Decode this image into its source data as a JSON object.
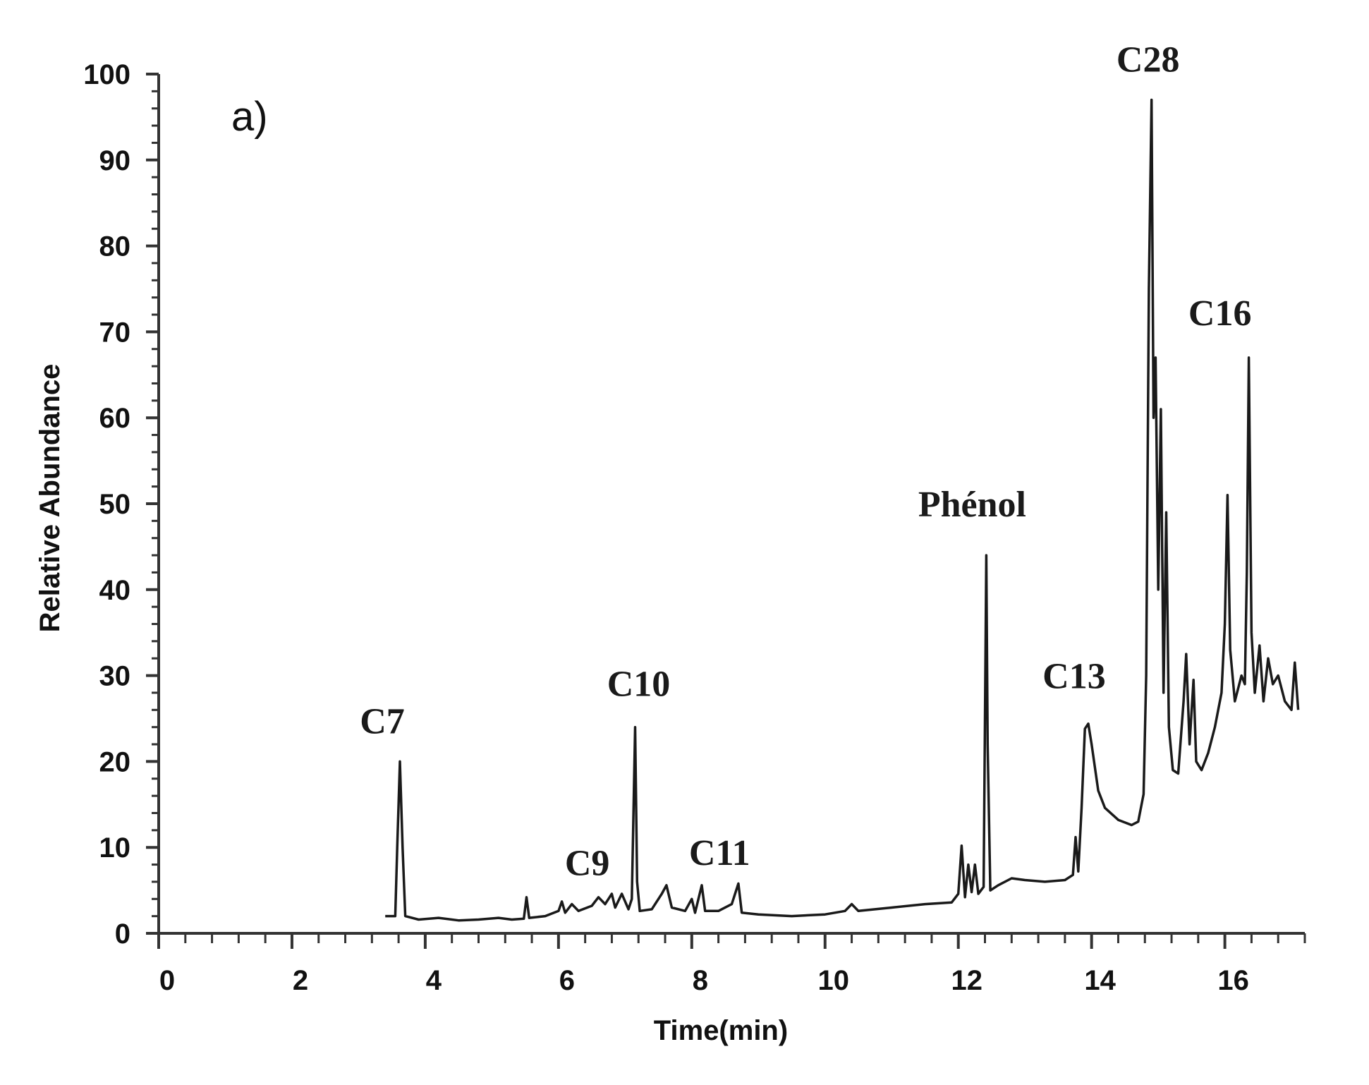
{
  "chart_data": {
    "type": "line",
    "panel_label": "a)",
    "title": "",
    "xlabel": "Time(min)",
    "ylabel": "Relative Abundance",
    "xlim": [
      0,
      17.2
    ],
    "ylim": [
      0,
      100
    ],
    "x_ticks": [
      0,
      2,
      4,
      6,
      8,
      10,
      12,
      14,
      16
    ],
    "y_ticks": [
      0,
      10,
      20,
      30,
      40,
      50,
      60,
      70,
      80,
      90,
      100
    ],
    "grid": false,
    "legend": "none",
    "colors": {
      "trace": "#1a1a1a",
      "axis": "#333333"
    },
    "peak_annotations": [
      {
        "label": "C7",
        "x": 3.62,
        "y": 20
      },
      {
        "label": "C9",
        "x": 5.5,
        "y": 4
      },
      {
        "label": "C10",
        "x": 7.15,
        "y": 24
      },
      {
        "label": "C11",
        "x": 8.1,
        "y": 5
      },
      {
        "label": "Phénol",
        "x": 12.42,
        "y": 44
      },
      {
        "label": "C13",
        "x": 13.95,
        "y": 24
      },
      {
        "label": "C28",
        "x": 14.9,
        "y": 97
      },
      {
        "label": "C16",
        "x": 16.35,
        "y": 67
      }
    ],
    "series": [
      {
        "points": [
          [
            3.4,
            2.0
          ],
          [
            3.55,
            2.0
          ],
          [
            3.58,
            10
          ],
          [
            3.62,
            20
          ],
          [
            3.66,
            10
          ],
          [
            3.7,
            2.0
          ],
          [
            3.9,
            1.6
          ],
          [
            4.2,
            1.8
          ],
          [
            4.5,
            1.5
          ],
          [
            4.8,
            1.6
          ],
          [
            5.1,
            1.8
          ],
          [
            5.3,
            1.6
          ],
          [
            5.48,
            1.7
          ],
          [
            5.52,
            4.2
          ],
          [
            5.56,
            1.8
          ],
          [
            5.8,
            2.0
          ],
          [
            6.0,
            2.6
          ],
          [
            6.05,
            3.7
          ],
          [
            6.1,
            2.4
          ],
          [
            6.2,
            3.4
          ],
          [
            6.3,
            2.6
          ],
          [
            6.5,
            3.2
          ],
          [
            6.6,
            4.2
          ],
          [
            6.7,
            3.4
          ],
          [
            6.8,
            4.6
          ],
          [
            6.85,
            3.0
          ],
          [
            6.95,
            4.6
          ],
          [
            7.05,
            2.8
          ],
          [
            7.1,
            4.0
          ],
          [
            7.15,
            24
          ],
          [
            7.18,
            6.0
          ],
          [
            7.22,
            2.6
          ],
          [
            7.4,
            2.8
          ],
          [
            7.55,
            4.6
          ],
          [
            7.62,
            5.6
          ],
          [
            7.7,
            3.0
          ],
          [
            7.9,
            2.6
          ],
          [
            8.0,
            4.0
          ],
          [
            8.05,
            2.4
          ],
          [
            8.15,
            5.6
          ],
          [
            8.2,
            2.6
          ],
          [
            8.4,
            2.6
          ],
          [
            8.6,
            3.4
          ],
          [
            8.7,
            5.8
          ],
          [
            8.75,
            2.4
          ],
          [
            9.0,
            2.2
          ],
          [
            9.5,
            2.0
          ],
          [
            10.0,
            2.2
          ],
          [
            10.3,
            2.6
          ],
          [
            10.4,
            3.4
          ],
          [
            10.5,
            2.6
          ],
          [
            11.0,
            3.0
          ],
          [
            11.5,
            3.4
          ],
          [
            11.9,
            3.6
          ],
          [
            12.0,
            4.6
          ],
          [
            12.05,
            10.2
          ],
          [
            12.1,
            4.2
          ],
          [
            12.15,
            8.0
          ],
          [
            12.2,
            4.8
          ],
          [
            12.25,
            8.0
          ],
          [
            12.3,
            4.6
          ],
          [
            12.38,
            5.4
          ],
          [
            12.42,
            44
          ],
          [
            12.44,
            22
          ],
          [
            12.48,
            5.0
          ],
          [
            12.6,
            5.6
          ],
          [
            12.8,
            6.4
          ],
          [
            13.0,
            6.2
          ],
          [
            13.3,
            6.0
          ],
          [
            13.6,
            6.2
          ],
          [
            13.72,
            6.8
          ],
          [
            13.76,
            11.2
          ],
          [
            13.8,
            7.2
          ],
          [
            13.85,
            14.6
          ],
          [
            13.9,
            23.8
          ],
          [
            13.95,
            24.4
          ],
          [
            14.0,
            22.0
          ],
          [
            14.1,
            16.6
          ],
          [
            14.2,
            14.6
          ],
          [
            14.4,
            13.2
          ],
          [
            14.6,
            12.6
          ],
          [
            14.7,
            13.0
          ],
          [
            14.78,
            16.2
          ],
          [
            14.82,
            30
          ],
          [
            14.86,
            75
          ],
          [
            14.9,
            97
          ],
          [
            14.93,
            60
          ],
          [
            14.96,
            67
          ],
          [
            15.0,
            40
          ],
          [
            15.04,
            61
          ],
          [
            15.08,
            28
          ],
          [
            15.12,
            49
          ],
          [
            15.16,
            24
          ],
          [
            15.22,
            19
          ],
          [
            15.3,
            18.6
          ],
          [
            15.38,
            27
          ],
          [
            15.42,
            32.5
          ],
          [
            15.47,
            22
          ],
          [
            15.53,
            29.5
          ],
          [
            15.57,
            20
          ],
          [
            15.65,
            19
          ],
          [
            15.75,
            21
          ],
          [
            15.85,
            24
          ],
          [
            15.95,
            28
          ],
          [
            16.0,
            36
          ],
          [
            16.04,
            51
          ],
          [
            16.08,
            33
          ],
          [
            16.15,
            27
          ],
          [
            16.25,
            30
          ],
          [
            16.3,
            29
          ],
          [
            16.33,
            42
          ],
          [
            16.36,
            67
          ],
          [
            16.4,
            35
          ],
          [
            16.45,
            28
          ],
          [
            16.52,
            33.5
          ],
          [
            16.58,
            27
          ],
          [
            16.65,
            32
          ],
          [
            16.72,
            29
          ],
          [
            16.8,
            30
          ],
          [
            16.9,
            27
          ],
          [
            17.0,
            26
          ],
          [
            17.05,
            31.5
          ],
          [
            17.1,
            26
          ]
        ]
      }
    ]
  }
}
